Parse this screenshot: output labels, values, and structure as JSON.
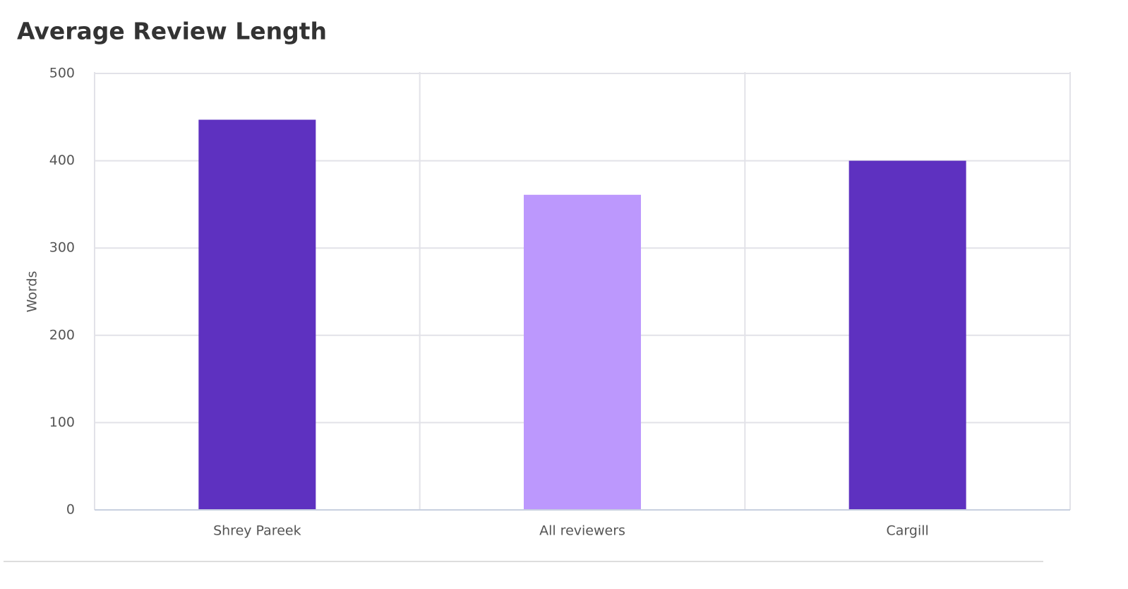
{
  "chart_data": {
    "type": "bar",
    "title": "Average Review Length",
    "y_label": "Words",
    "categories": [
      "Shrey Pareek",
      "All reviewers",
      "Cargill"
    ],
    "values": [
      447,
      361,
      400
    ],
    "colors": [
      "#5e31c0",
      "#bc98fd",
      "#5e31c0"
    ],
    "ylim": [
      0,
      500
    ],
    "yticks": [
      0,
      100,
      200,
      300,
      400,
      500
    ],
    "grid": true
  }
}
